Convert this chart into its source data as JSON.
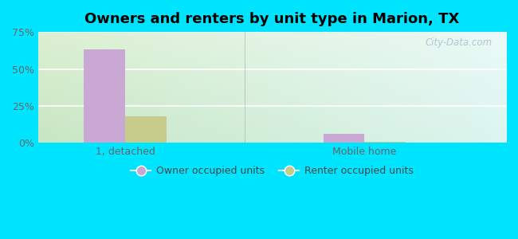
{
  "title": "Owners and renters by unit type in Marion, TX",
  "categories": [
    "1, detached",
    "Mobile home"
  ],
  "owner_values": [
    63,
    6
  ],
  "renter_values": [
    18,
    1
  ],
  "owner_color": "#c9a8d4",
  "renter_color": "#c8cc8a",
  "ylim": [
    0,
    75
  ],
  "yticks": [
    0,
    25,
    50,
    75
  ],
  "ytick_labels": [
    "0%",
    "25%",
    "50%",
    "75%"
  ],
  "outer_bg": "#00e5ff",
  "bar_width": 0.38,
  "group_positions": [
    1.0,
    3.2
  ],
  "xlim": [
    0.2,
    4.5
  ],
  "watermark": "City-Data.com",
  "legend_owner": "Owner occupied units",
  "legend_renter": "Renter occupied units",
  "bg_color_topleft": "#d8efd0",
  "bg_color_topright": "#eaf6f6",
  "bg_color_bottomleft": "#c8e8c0",
  "bg_color_bottomright": "#dff5f5"
}
